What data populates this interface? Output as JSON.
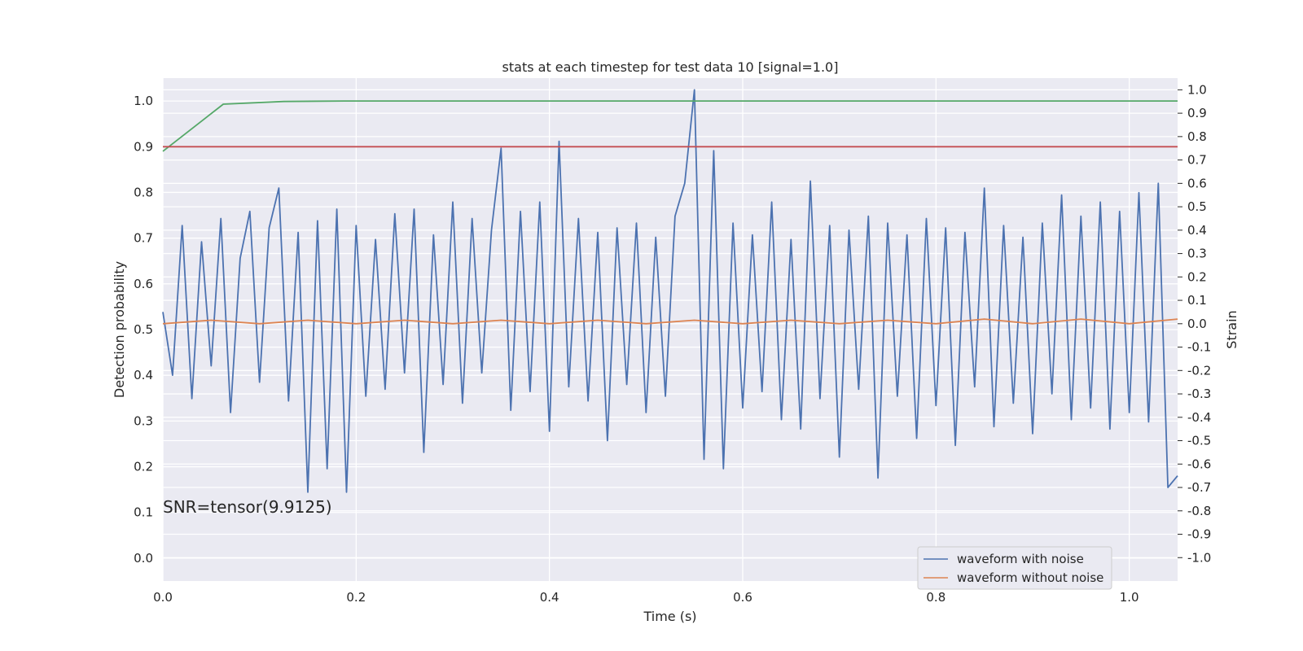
{
  "chart_data": {
    "type": "line",
    "title": "stats at each timestep for test data 10 [signal=1.0]",
    "xlabel": "Time (s)",
    "ylabel": "Detection probability",
    "y2label": "Strain",
    "annotation": "SNR=tensor(9.9125)",
    "xlim": [
      0.0,
      1.05
    ],
    "ylim": [
      -0.05,
      1.05
    ],
    "y2lim": [
      -1.1,
      1.05
    ],
    "xticks": [
      "0.0",
      "0.2",
      "0.4",
      "0.6",
      "0.8",
      "1.0"
    ],
    "yticks": [
      "0.0",
      "0.1",
      "0.2",
      "0.3",
      "0.4",
      "0.5",
      "0.6",
      "0.7",
      "0.8",
      "0.9",
      "1.0"
    ],
    "y2ticks": [
      "1.0",
      "0.9",
      "0.8",
      "0.7",
      "0.6",
      "0.5",
      "0.4",
      "0.3",
      "0.2",
      "0.1",
      "0.0",
      "-0.1",
      "-0.2",
      "-0.3",
      "-0.4",
      "-0.5",
      "-0.6",
      "-0.7",
      "-0.8",
      "-0.9",
      "-1.0"
    ],
    "grid": true,
    "legend_position": "lower-right",
    "series": [
      {
        "name": "waveform with noise",
        "axis": "right",
        "color": "#4c72b0",
        "x": [
          0.0,
          0.01,
          0.02,
          0.03,
          0.04,
          0.05,
          0.06,
          0.07,
          0.08,
          0.09,
          0.1,
          0.11,
          0.12,
          0.13,
          0.14,
          0.15,
          0.16,
          0.17,
          0.18,
          0.19,
          0.2,
          0.21,
          0.22,
          0.23,
          0.24,
          0.25,
          0.26,
          0.27,
          0.28,
          0.29,
          0.3,
          0.31,
          0.32,
          0.33,
          0.34,
          0.35,
          0.36,
          0.37,
          0.38,
          0.39,
          0.4,
          0.41,
          0.42,
          0.43,
          0.44,
          0.45,
          0.46,
          0.47,
          0.48,
          0.49,
          0.5,
          0.51,
          0.52,
          0.53,
          0.54,
          0.55,
          0.56,
          0.57,
          0.58,
          0.59,
          0.6,
          0.61,
          0.62,
          0.63,
          0.64,
          0.65,
          0.66,
          0.67,
          0.68,
          0.69,
          0.7,
          0.71,
          0.72,
          0.73,
          0.74,
          0.75,
          0.76,
          0.77,
          0.78,
          0.79,
          0.8,
          0.81,
          0.82,
          0.83,
          0.84,
          0.85,
          0.86,
          0.87,
          0.88,
          0.89,
          0.9,
          0.91,
          0.92,
          0.93,
          0.94,
          0.95,
          0.96,
          0.97,
          0.98,
          0.99,
          1.0,
          1.01,
          1.02,
          1.03,
          1.04,
          1.05
        ],
        "y": [
          0.05,
          -0.22,
          0.42,
          -0.32,
          0.35,
          -0.18,
          0.45,
          -0.38,
          0.28,
          0.48,
          -0.25,
          0.41,
          0.58,
          -0.33,
          0.39,
          -0.72,
          0.44,
          -0.62,
          0.49,
          -0.72,
          0.42,
          -0.31,
          0.36,
          -0.28,
          0.47,
          -0.21,
          0.49,
          -0.55,
          0.38,
          -0.26,
          0.52,
          -0.34,
          0.45,
          -0.21,
          0.4,
          0.75,
          -0.37,
          0.48,
          -0.29,
          0.52,
          -0.46,
          0.78,
          -0.27,
          0.45,
          -0.33,
          0.39,
          -0.5,
          0.41,
          -0.26,
          0.43,
          -0.38,
          0.37,
          -0.31,
          0.46,
          0.6,
          1.0,
          -0.58,
          0.74,
          -0.62,
          0.43,
          -0.36,
          0.38,
          -0.29,
          0.52,
          -0.41,
          0.36,
          -0.45,
          0.61,
          -0.32,
          0.42,
          -0.57,
          0.4,
          -0.28,
          0.46,
          -0.66,
          0.43,
          -0.31,
          0.38,
          -0.49,
          0.45,
          -0.35,
          0.41,
          -0.52,
          0.39,
          -0.27,
          0.58,
          -0.44,
          0.42,
          -0.34,
          0.37,
          -0.47,
          0.43,
          -0.3,
          0.55,
          -0.41,
          0.46,
          -0.36,
          0.52,
          -0.45,
          0.48,
          -0.38,
          0.56,
          -0.42,
          0.6,
          -0.7,
          -0.65
        ]
      },
      {
        "name": "waveform without noise",
        "axis": "right",
        "color": "#dd8452",
        "x": [
          0.0,
          0.05,
          0.1,
          0.15,
          0.2,
          0.25,
          0.3,
          0.35,
          0.4,
          0.45,
          0.5,
          0.55,
          0.6,
          0.65,
          0.7,
          0.75,
          0.8,
          0.85,
          0.9,
          0.95,
          1.0,
          1.05
        ],
        "y": [
          0.0,
          0.015,
          0.0,
          0.015,
          0.0,
          0.015,
          0.0,
          0.015,
          0.0,
          0.015,
          0.0,
          0.015,
          0.0,
          0.015,
          0.0,
          0.015,
          0.0,
          0.02,
          0.0,
          0.02,
          0.0,
          0.02
        ]
      },
      {
        "color": "#55a868",
        "axis": "left",
        "x": [
          0.0,
          0.0625,
          0.125,
          0.1875,
          0.25,
          0.5,
          0.75,
          1.0,
          1.05
        ],
        "y": [
          0.89,
          0.993,
          0.999,
          1.0,
          1.0,
          1.0,
          1.0,
          1.0,
          1.0
        ]
      },
      {
        "color": "#c44e52",
        "axis": "left",
        "x": [
          0.0,
          1.05
        ],
        "y": [
          0.9,
          0.9
        ]
      }
    ]
  }
}
